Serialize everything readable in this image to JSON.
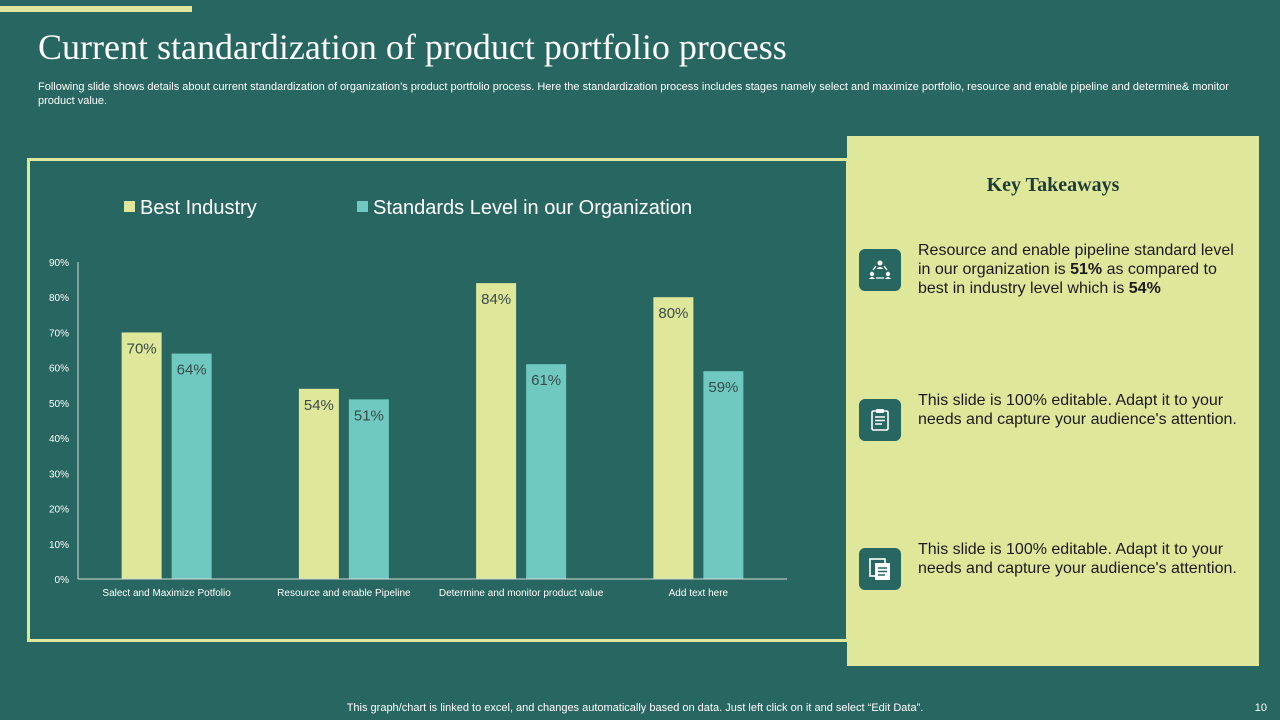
{
  "slide": {
    "title": "Current standardization of product portfolio process",
    "subtitle": "Following slide shows details about current standardization of organization’s product portfolio process. Here the standardization process includes stages namely select and maximize portfolio, resource and enable pipeline and determine& monitor product value.",
    "footer": "This graph/chart is linked to excel, and changes automatically based on data. Just left click on it and select “Edit Data”.",
    "page_number": "10"
  },
  "colors": {
    "background": "#286661",
    "accent": "#dfe89a",
    "best_industry": "#dfe89a",
    "organization": "#6fc9c1"
  },
  "chart_data": {
    "type": "bar",
    "title": "",
    "categories": [
      "Salect and Maximize Potfolio",
      "Resource and enable Pipeline",
      "Determine and monitor product value",
      "Add text here"
    ],
    "series": [
      {
        "name": "Best Industry",
        "values": [
          70,
          54,
          84,
          80
        ]
      },
      {
        "name": "Standards Level in our Organization",
        "values": [
          64,
          51,
          61,
          59
        ]
      }
    ],
    "data_labels": [
      [
        "70%",
        "54%",
        "84%",
        "80%"
      ],
      [
        "64%",
        "51%",
        "61%",
        "59%"
      ]
    ],
    "yticks": [
      "0%",
      "10%",
      "20%",
      "30%",
      "40%",
      "50%",
      "60%",
      "70%",
      "80%",
      "90%"
    ],
    "ylim": [
      0,
      90
    ],
    "xlabel": "",
    "ylabel": "",
    "legend_position": "top",
    "grid": false
  },
  "takeaways": {
    "title": "Key Takeaways",
    "items": [
      {
        "icon": "team-network-icon",
        "text_before": "Resource and enable pipeline standard level in our organization is ",
        "bold1": "51%",
        "text_middle": " as compared to best in industry  level which is ",
        "bold2": "54%"
      },
      {
        "icon": "clipboard-icon",
        "text": "This slide is 100% editable. Adapt it to your needs and capture your audience's attention."
      },
      {
        "icon": "documents-icon",
        "text": "This slide is 100% editable. Adapt it to your needs and capture your audience's attention."
      }
    ]
  }
}
